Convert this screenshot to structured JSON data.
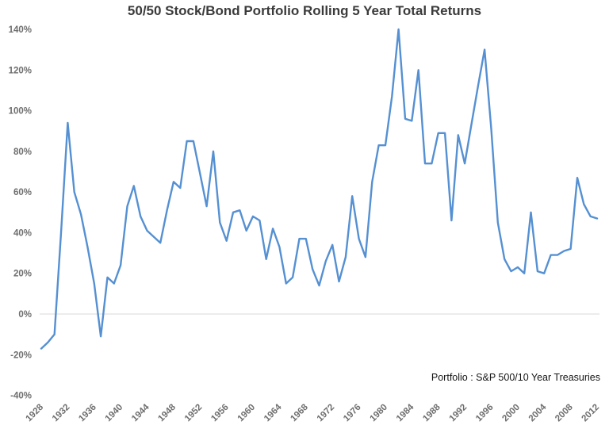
{
  "chart_data": {
    "type": "line",
    "title": "50/50 Stock/Bond Portfolio Rolling 5 Year Total Returns",
    "annotation": "Portfolio : S&P 500/10 Year Treasuries",
    "series_name": "50/50 portfolio rolling 5 year total return (%)",
    "xlabel": "",
    "ylabel": "",
    "ylim": [
      -40,
      140
    ],
    "xlim": [
      1928,
      2012
    ],
    "grid": "horizontal zero line only",
    "legend_position": "none",
    "line_color": "#5590D2",
    "gridline_color": "#D9D9D9",
    "axis_label_color": "#6E6E6E",
    "title_color": "#3B3B3B",
    "y_ticks": [
      -40,
      -20,
      0,
      20,
      40,
      60,
      80,
      100,
      120,
      140
    ],
    "y_tick_labels": [
      "-40%",
      "-20%",
      "0%",
      "20%",
      "40%",
      "60%",
      "80%",
      "100%",
      "120%",
      "140%"
    ],
    "x_tick_labels": [
      "1928",
      "1932",
      "1936",
      "1940",
      "1944",
      "1948",
      "1952",
      "1956",
      "1960",
      "1964",
      "1968",
      "1972",
      "1976",
      "1980",
      "1984",
      "1988",
      "1992",
      "1996",
      "2000",
      "2004",
      "2008",
      "2012"
    ],
    "x": [
      1928,
      1929,
      1930,
      1931,
      1932,
      1933,
      1934,
      1935,
      1936,
      1937,
      1938,
      1939,
      1940,
      1941,
      1942,
      1943,
      1944,
      1945,
      1946,
      1947,
      1948,
      1949,
      1950,
      1951,
      1952,
      1953,
      1954,
      1955,
      1956,
      1957,
      1958,
      1959,
      1960,
      1961,
      1962,
      1963,
      1964,
      1965,
      1966,
      1967,
      1968,
      1969,
      1970,
      1971,
      1972,
      1973,
      1974,
      1975,
      1976,
      1977,
      1978,
      1979,
      1980,
      1981,
      1982,
      1983,
      1984,
      1985,
      1986,
      1987,
      1988,
      1989,
      1990,
      1991,
      1992,
      1993,
      1994,
      1995,
      1996,
      1997,
      1998,
      1999,
      2000,
      2001,
      2002,
      2003,
      2004,
      2005,
      2006,
      2007,
      2008,
      2009,
      2010,
      2011,
      2012
    ],
    "values": [
      -17,
      -14,
      -10,
      40,
      94,
      60,
      49,
      33,
      15,
      -11,
      18,
      15,
      24,
      53,
      63,
      48,
      41,
      38,
      35,
      51,
      65,
      62,
      85,
      85,
      69,
      53,
      80,
      45,
      36,
      50,
      51,
      41,
      48,
      46,
      27,
      42,
      33,
      15,
      18,
      37,
      37,
      22,
      14,
      26,
      34,
      16,
      28,
      58,
      37,
      28,
      65,
      83,
      83,
      107,
      140,
      96,
      95,
      120,
      74,
      74,
      89,
      89,
      46,
      88,
      74,
      93,
      112,
      130,
      91,
      45,
      27,
      21,
      23,
      20,
      50,
      21,
      20,
      29,
      29,
      31,
      32,
      67,
      54,
      48,
      47
    ]
  }
}
